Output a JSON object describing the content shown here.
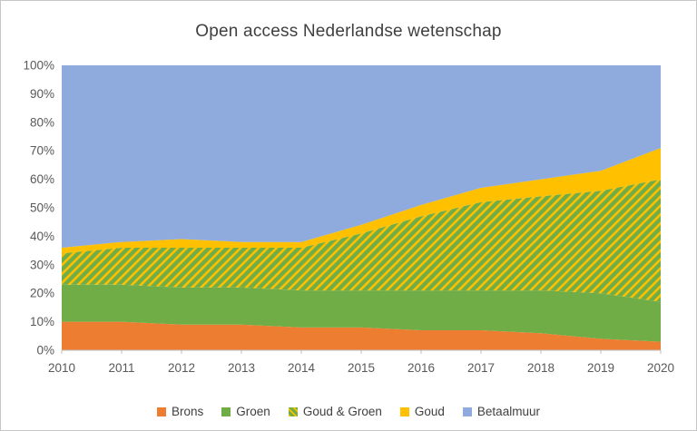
{
  "chart_data": {
    "type": "area",
    "stacked": true,
    "normalized_percent": true,
    "title": "Open access Nederlandse wetenschap",
    "xlabel": "",
    "ylabel": "",
    "ylim": [
      0,
      100
    ],
    "y_ticks": [
      "0%",
      "10%",
      "20%",
      "30%",
      "40%",
      "50%",
      "60%",
      "70%",
      "80%",
      "90%",
      "100%"
    ],
    "categories": [
      "2010",
      "2011",
      "2012",
      "2013",
      "2014",
      "2015",
      "2016",
      "2017",
      "2018",
      "2019",
      "2020"
    ],
    "series": [
      {
        "name": "Brons",
        "color": "#ED7D31",
        "values": [
          10,
          10,
          9,
          9,
          8,
          8,
          7,
          7,
          6,
          4,
          3
        ]
      },
      {
        "name": "Groen",
        "color": "#70AD47",
        "values": [
          13,
          13,
          13,
          13,
          13,
          13,
          14,
          14,
          15,
          16,
          14
        ]
      },
      {
        "name": "Goud & Groen",
        "color": "#70AD47",
        "stripe_color": "#FFC000",
        "values": [
          11,
          13,
          14,
          14,
          15,
          20,
          26,
          31,
          33,
          36,
          43
        ]
      },
      {
        "name": "Goud",
        "color": "#FFC000",
        "values": [
          2,
          2,
          3,
          2,
          2,
          3,
          4,
          5,
          6,
          7,
          11
        ]
      },
      {
        "name": "Betaalmuur",
        "color": "#8FAADC",
        "values": [
          64,
          62,
          61,
          62,
          62,
          56,
          49,
          43,
          40,
          37,
          29
        ]
      }
    ],
    "legend_position": "bottom",
    "grid": false,
    "axis_color": "#BFBFBF",
    "label_color": "#595959",
    "title_color": "#404040"
  }
}
